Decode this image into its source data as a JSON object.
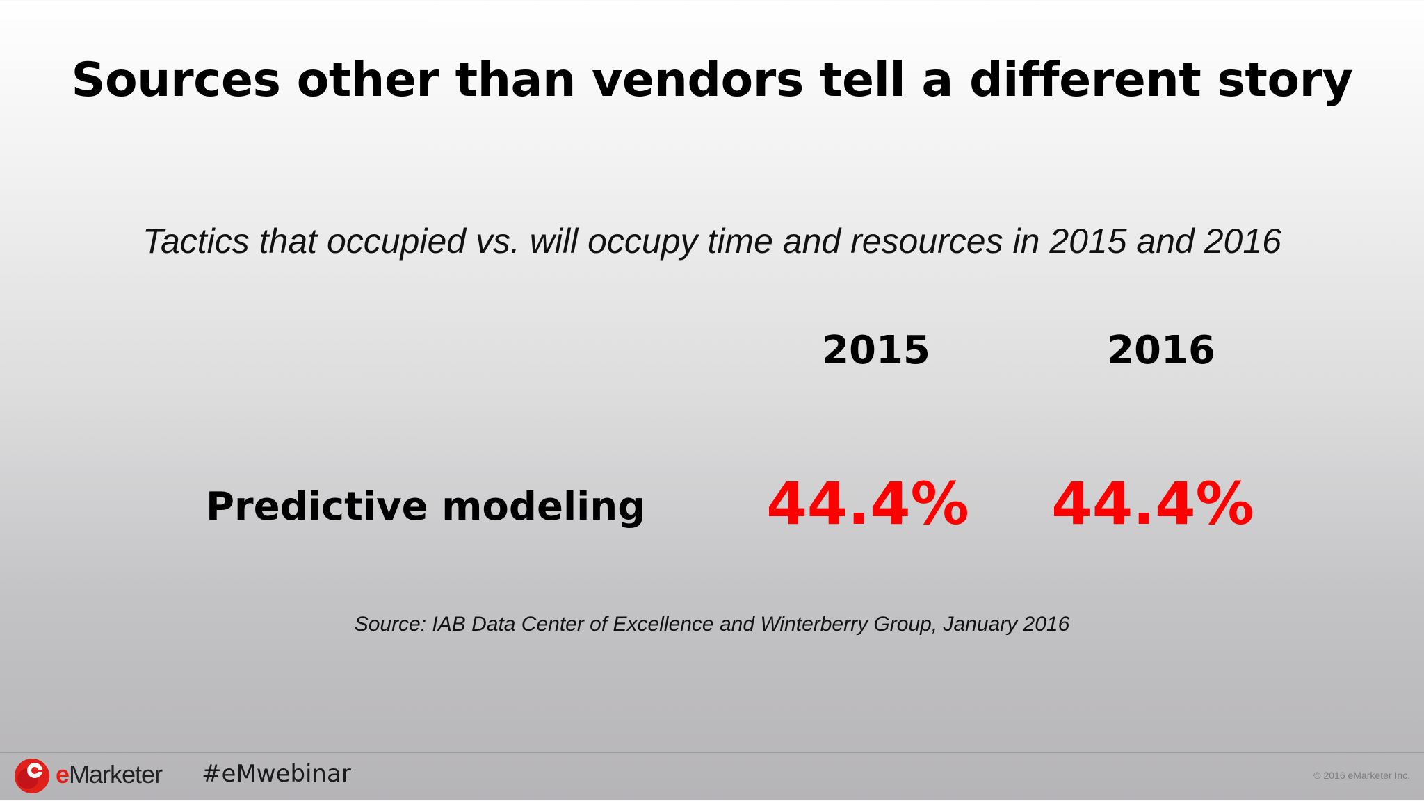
{
  "slide": {
    "title": "Sources other than vendors tell a different story",
    "subtitle": "Tactics that occupied vs. will occupy time and resources in 2015 and 2016"
  },
  "table": {
    "columns": [
      "2015",
      "2016"
    ],
    "rows": [
      {
        "label": "Predictive modeling",
        "values": [
          "44.4%",
          "44.4%"
        ]
      }
    ]
  },
  "source": "Source: IAB Data Center of Excellence and Winterberry Group, January 2016",
  "footer": {
    "logo_prefix": "e",
    "logo_rest": "Marketer",
    "hashtag": "#eMwebinar",
    "copyright": "© 2016 eMarketer Inc."
  },
  "colors": {
    "value_red": "#ff0000",
    "brand_red": "#e0201b"
  },
  "icons": {
    "logo": "emarketer-logo-icon"
  }
}
